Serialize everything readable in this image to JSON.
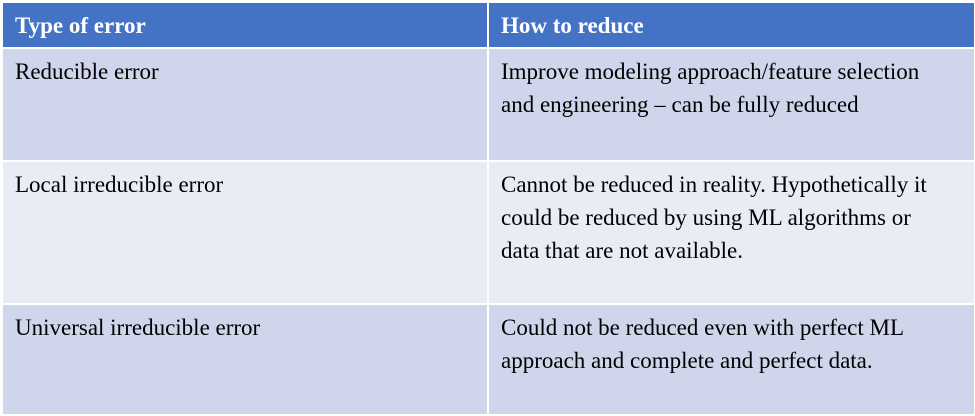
{
  "table": {
    "header": [
      "Type of error",
      "How to reduce"
    ],
    "rows": [
      [
        "Reducible error",
        "Improve modeling approach/feature selection and engineering – can be fully reduced"
      ],
      [
        "Local irreducible error",
        "Cannot be reduced in reality. Hypothetically it could be reduced by using ML algorithms or data that are not available."
      ],
      [
        "Universal irreducible error",
        "Could not be reduced even with perfect ML approach and complete and perfect data."
      ]
    ]
  }
}
